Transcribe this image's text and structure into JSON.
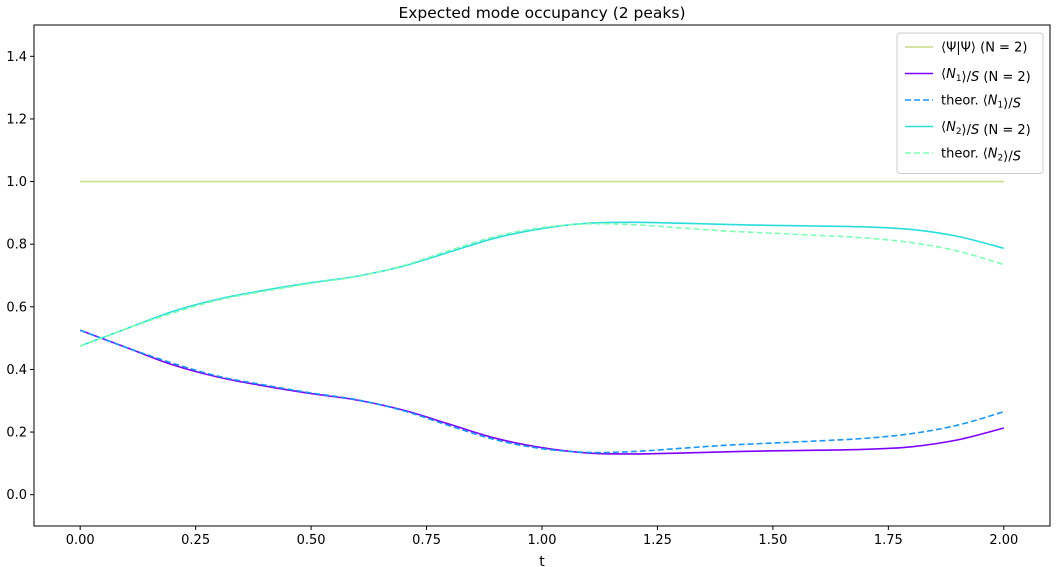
{
  "chart_data": {
    "type": "line",
    "title": "Expected mode occupancy (2 peaks)",
    "xlabel": "t",
    "ylabel": "",
    "xlim": [
      -0.1,
      2.1
    ],
    "ylim": [
      -0.1,
      1.5
    ],
    "xticks": [
      0.0,
      0.25,
      0.5,
      0.75,
      1.0,
      1.25,
      1.5,
      1.75,
      2.0
    ],
    "xtick_labels": [
      "0.00",
      "0.25",
      "0.50",
      "0.75",
      "1.00",
      "1.25",
      "1.50",
      "1.75",
      "2.00"
    ],
    "yticks": [
      0.0,
      0.2,
      0.4,
      0.6,
      0.8,
      1.0,
      1.2,
      1.4
    ],
    "ytick_labels": [
      "0.0",
      "0.2",
      "0.4",
      "0.6",
      "0.8",
      "1.0",
      "1.2",
      "1.4"
    ],
    "grid": false,
    "legend_position": "top-right",
    "x": [
      0.0,
      0.1,
      0.2,
      0.3,
      0.4,
      0.5,
      0.6,
      0.7,
      0.8,
      0.9,
      1.0,
      1.1,
      1.2,
      1.3,
      1.4,
      1.5,
      1.6,
      1.7,
      1.8,
      1.9,
      2.0
    ],
    "series": [
      {
        "name": "⟨Ψ|Ψ⟩ (N = 2)",
        "name_parts": [
          [
            "n",
            "⟨Ψ|Ψ⟩ (N = 2)"
          ]
        ],
        "color": "#c5dc8a",
        "dash": "solid",
        "values": [
          1.0,
          1.0,
          1.0,
          1.0,
          1.0,
          1.0,
          1.0,
          1.0,
          1.0,
          1.0,
          1.0,
          1.0,
          1.0,
          1.0,
          1.0,
          1.0,
          1.0,
          1.0,
          1.0,
          1.0,
          1.0
        ]
      },
      {
        "name": "⟨N1⟩/S (N = 2)",
        "name_parts": [
          [
            "n",
            "⟨"
          ],
          [
            "i",
            "N"
          ],
          [
            "sub",
            "1"
          ],
          [
            "n",
            "⟩/"
          ],
          [
            "i",
            "S"
          ],
          [
            "n",
            " (N = 2)"
          ]
        ],
        "color": "#8000ff",
        "dash": "solid",
        "values": [
          0.525,
          0.47,
          0.415,
          0.375,
          0.347,
          0.323,
          0.302,
          0.27,
          0.225,
          0.18,
          0.15,
          0.133,
          0.13,
          0.133,
          0.137,
          0.14,
          0.142,
          0.145,
          0.153,
          0.175,
          0.213
        ]
      },
      {
        "name": "theor. ⟨N1⟩/S",
        "name_parts": [
          [
            "n",
            "theor. ⟨"
          ],
          [
            "i",
            "N"
          ],
          [
            "sub",
            "1"
          ],
          [
            "n",
            "⟩/"
          ],
          [
            "i",
            "S"
          ]
        ],
        "color": "#1996f3",
        "dash": "dashed",
        "values": [
          0.525,
          0.47,
          0.42,
          0.378,
          0.35,
          0.325,
          0.303,
          0.268,
          0.22,
          0.175,
          0.147,
          0.135,
          0.138,
          0.148,
          0.158,
          0.165,
          0.172,
          0.18,
          0.195,
          0.222,
          0.265
        ]
      },
      {
        "name": "⟨N2⟩/S (N = 2)",
        "name_parts": [
          [
            "n",
            "⟨"
          ],
          [
            "i",
            "N"
          ],
          [
            "sub",
            "2"
          ],
          [
            "n",
            "⟩/"
          ],
          [
            "i",
            "S"
          ],
          [
            "n",
            " (N = 2)"
          ]
        ],
        "color": "#2adddd",
        "dash": "solid",
        "values": [
          0.475,
          0.53,
          0.585,
          0.625,
          0.653,
          0.677,
          0.698,
          0.73,
          0.775,
          0.82,
          0.85,
          0.867,
          0.87,
          0.867,
          0.863,
          0.86,
          0.858,
          0.855,
          0.847,
          0.825,
          0.787
        ]
      },
      {
        "name": "theor. ⟨N2⟩/S",
        "name_parts": [
          [
            "n",
            "theor. ⟨"
          ],
          [
            "i",
            "N"
          ],
          [
            "sub",
            "2"
          ],
          [
            "n",
            "⟩/"
          ],
          [
            "i",
            "S"
          ]
        ],
        "color": "#80ffb4",
        "dash": "dashed",
        "values": [
          0.475,
          0.53,
          0.58,
          0.622,
          0.65,
          0.675,
          0.697,
          0.732,
          0.78,
          0.825,
          0.853,
          0.865,
          0.862,
          0.852,
          0.842,
          0.835,
          0.828,
          0.82,
          0.805,
          0.778,
          0.735
        ]
      }
    ]
  }
}
